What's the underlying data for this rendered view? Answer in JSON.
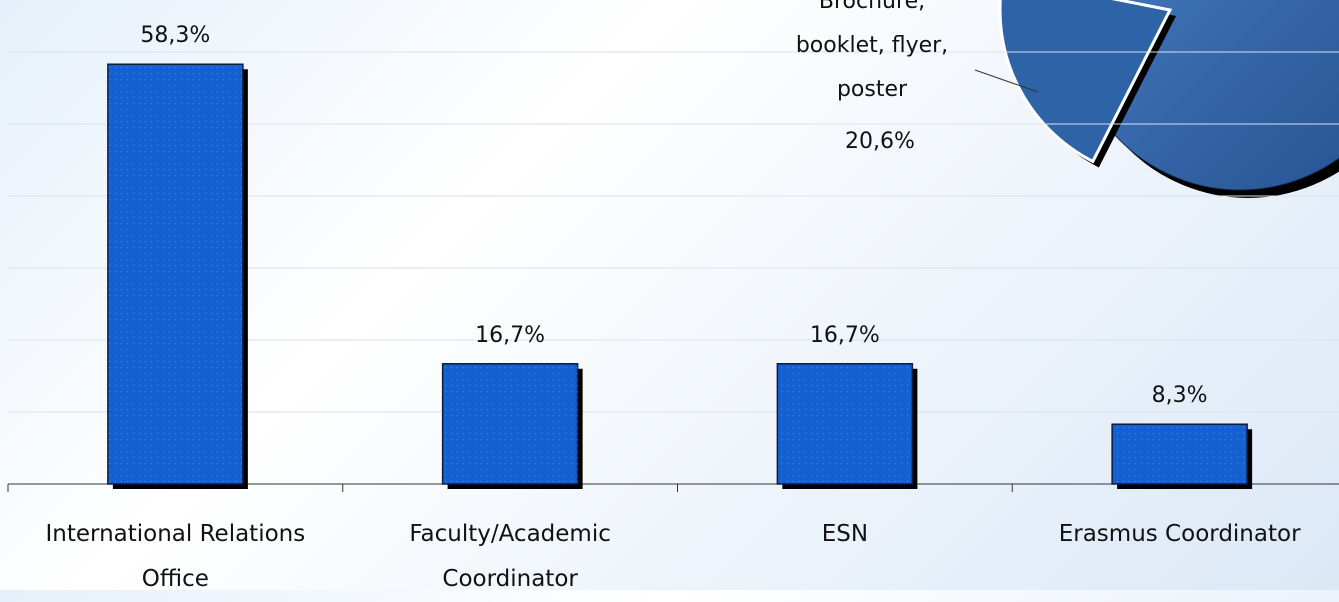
{
  "chart_data": [
    {
      "type": "bar",
      "categories": [
        "International Relations Office",
        "Faculty/Academic Coordinator",
        "ESN",
        "Erasmus Coordinator"
      ],
      "values": [
        58.3,
        16.7,
        16.7,
        8.3
      ],
      "value_labels": [
        "58,3%",
        "16,7%",
        "16,7%",
        "8,3%"
      ],
      "color": "#1560d0",
      "ylim": [
        0,
        60
      ],
      "yticks": [
        0,
        10,
        20,
        30,
        40,
        50,
        60
      ],
      "grid": true
    },
    {
      "type": "pie",
      "categories": [
        "Brochure, booklet, flyer, poster"
      ],
      "values": [
        20.6
      ],
      "value_labels": [
        "20,6%"
      ],
      "color": "#2f63a8"
    }
  ]
}
